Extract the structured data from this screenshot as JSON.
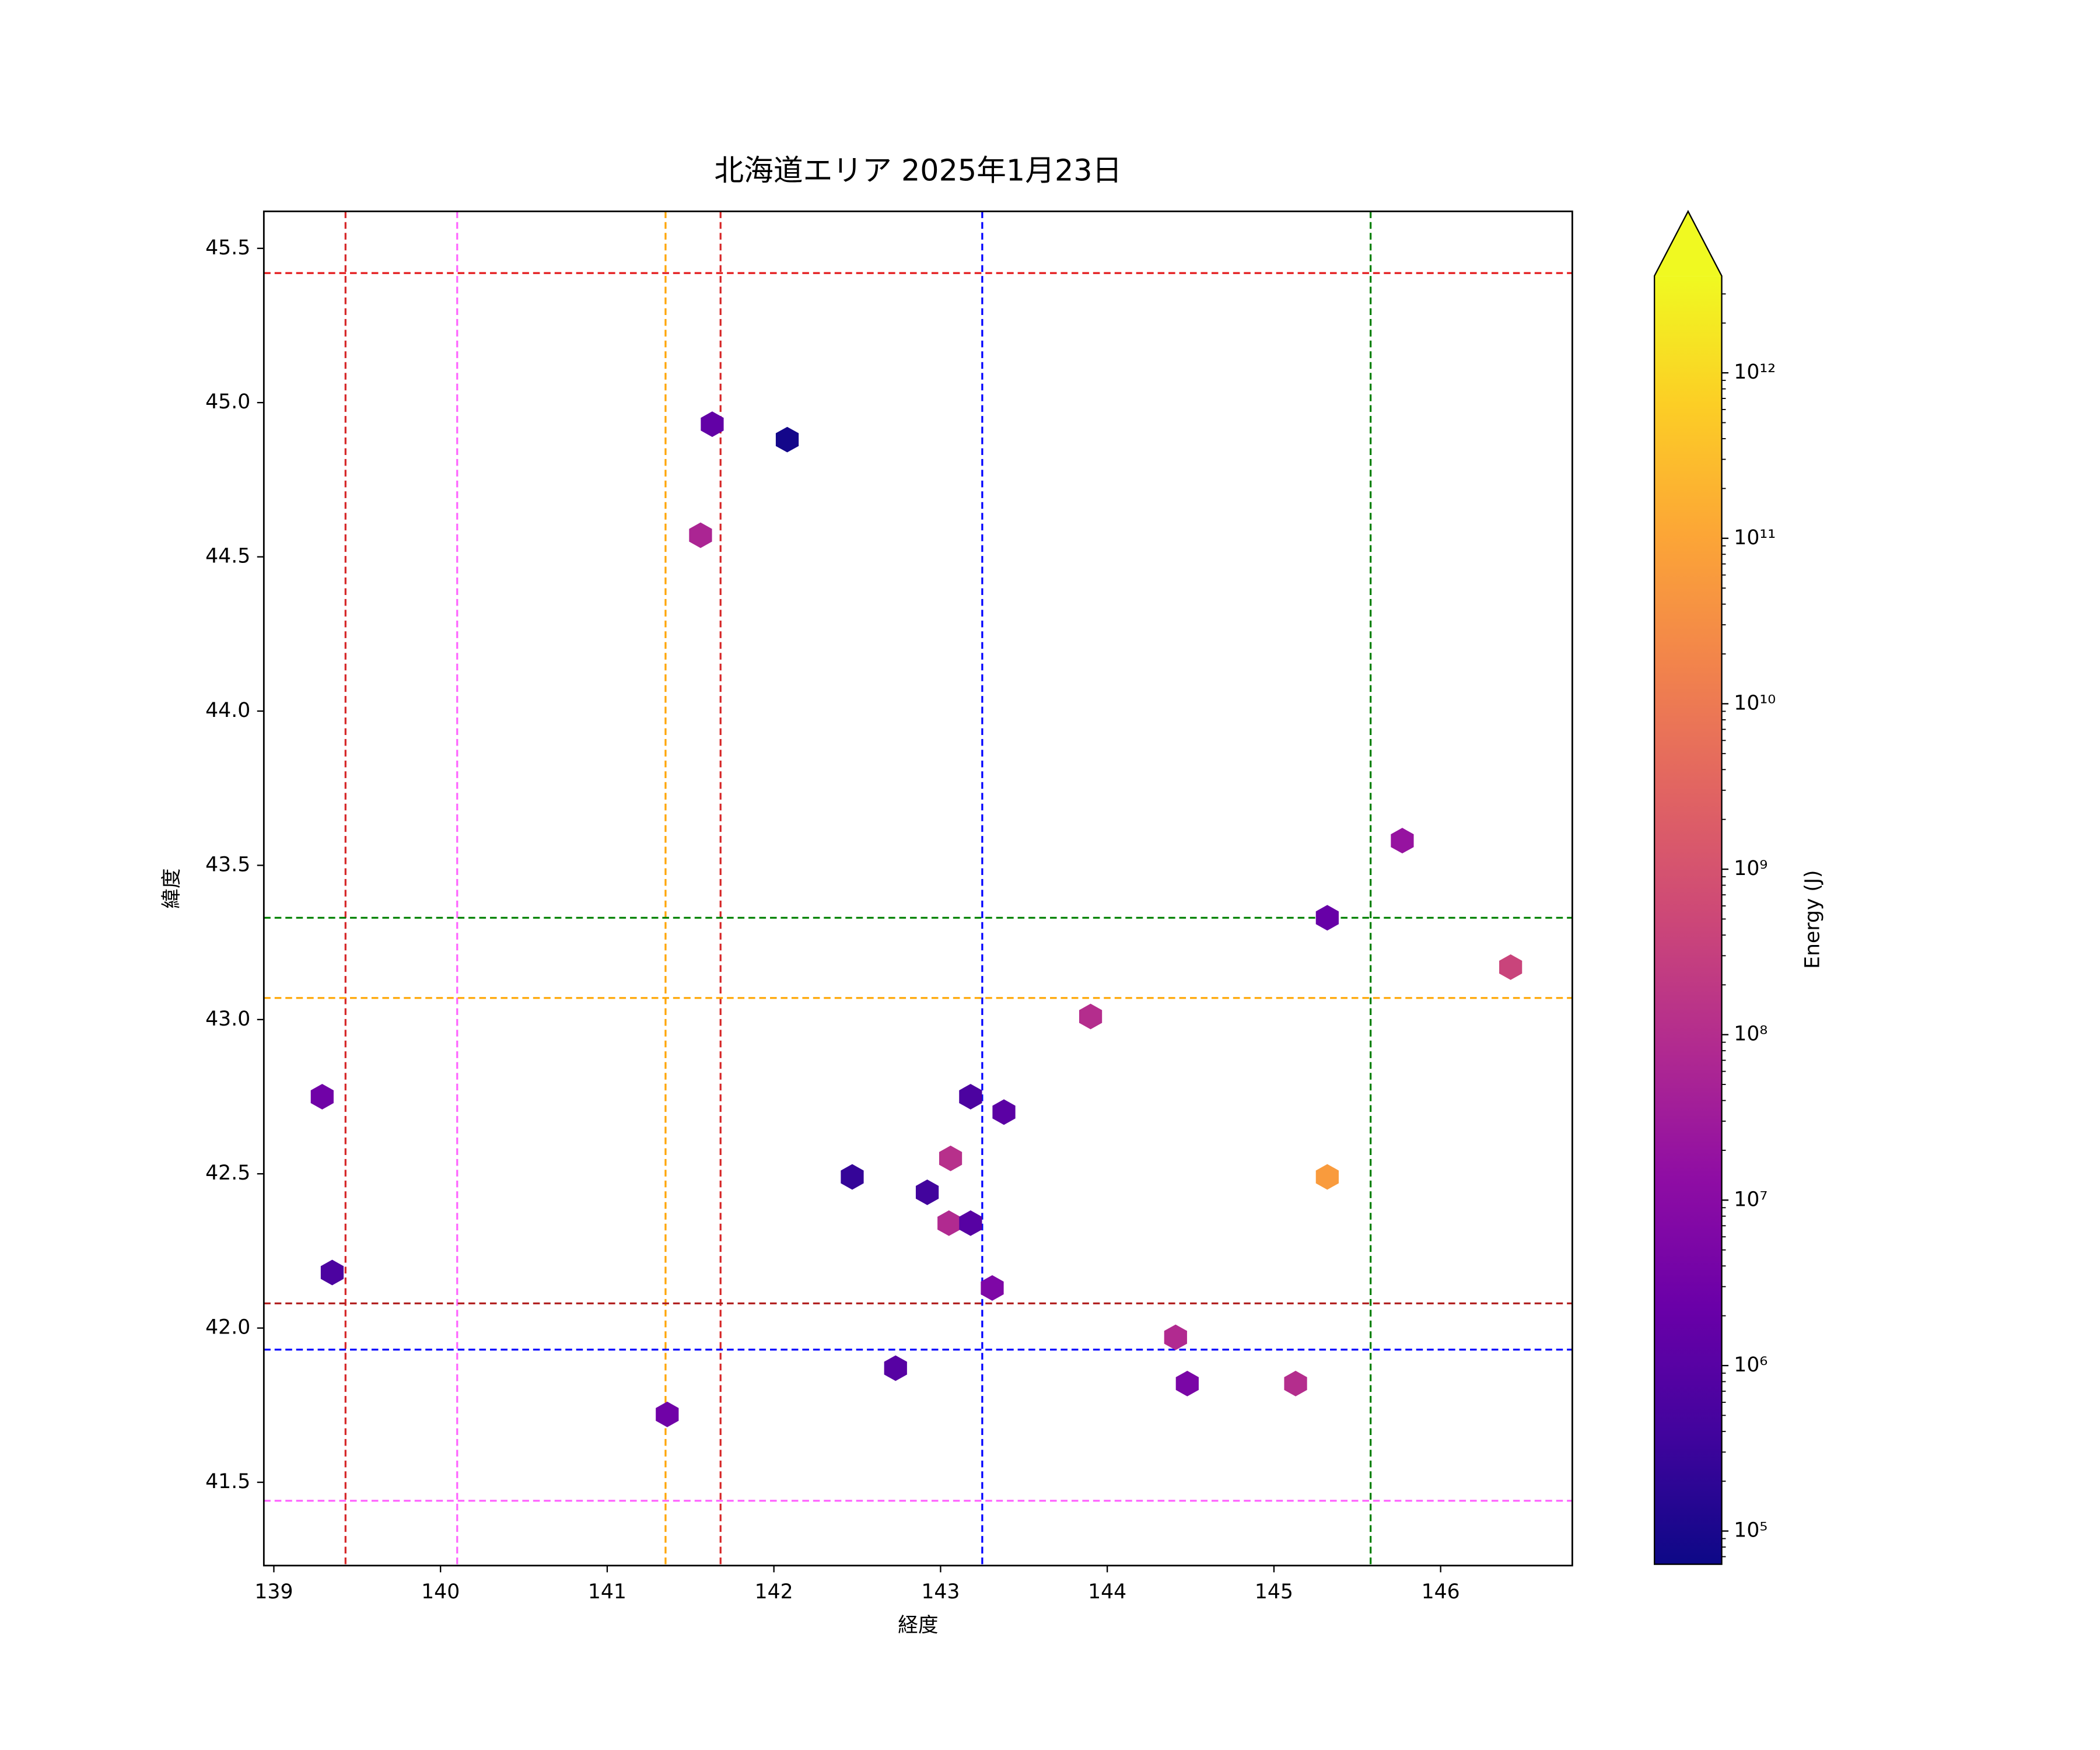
{
  "chart_data": {
    "type": "hexbin",
    "title": "北海道エリア 2025年1月23日",
    "x_label": "経度",
    "y_label": "緯度",
    "colorbar_label": "Energy (J)",
    "colormap": "plasma",
    "color_scale": "log",
    "clim": [
      63000,
      3850000000000.0
    ],
    "colorbar_extend": "max",
    "x": [
      141.63,
      142.08,
      141.56,
      145.77,
      145.32,
      146.42,
      143.9,
      139.29,
      143.18,
      143.38,
      143.06,
      142.47,
      145.32,
      142.92,
      143.05,
      143.18,
      139.35,
      143.31,
      144.41,
      142.73,
      144.48,
      145.13,
      141.36
    ],
    "y": [
      44.93,
      44.88,
      44.57,
      43.58,
      43.33,
      43.17,
      43.01,
      42.75,
      42.75,
      42.7,
      42.55,
      42.49,
      42.49,
      42.44,
      42.34,
      42.34,
      42.18,
      42.13,
      41.97,
      41.87,
      41.82,
      41.82,
      41.72
    ],
    "values": [
      1600000.0,
      80000.0,
      60000000.0,
      20000000.0,
      2000000.0,
      400000000.0,
      100000000.0,
      3000000.0,
      600000.0,
      1200000.0,
      120000000.0,
      250000.0,
      60000000000.0,
      400000.0,
      80000000.0,
      1000000.0,
      600000.0,
      6000000.0,
      80000000.0,
      1000000.0,
      5000000.0,
      100000000.0,
      3000000.0
    ],
    "xlim": [
      138.94,
      146.79
    ],
    "ylim": [
      41.23,
      45.62
    ],
    "xticks": [
      139,
      140,
      141,
      142,
      143,
      144,
      145,
      146
    ],
    "yticks": [
      {
        "value": 41.5,
        "label": "41.5"
      },
      {
        "value": 42,
        "label": "42.0"
      },
      {
        "value": 42.5,
        "label": "42.5"
      },
      {
        "value": 43,
        "label": "43.0"
      },
      {
        "value": 43.5,
        "label": "43.5"
      },
      {
        "value": 44,
        "label": "44.0"
      },
      {
        "value": 44.5,
        "label": "44.5"
      },
      {
        "value": 45,
        "label": "45.0"
      },
      {
        "value": 45.5,
        "label": "45.5"
      }
    ],
    "cticks": [
      {
        "value": 100000.0,
        "label": "10⁵"
      },
      {
        "value": 1000000.0,
        "label": "10⁶"
      },
      {
        "value": 10000000.0,
        "label": "10⁷"
      },
      {
        "value": 100000000.0,
        "label": "10⁸"
      },
      {
        "value": 1000000000.0,
        "label": "10⁹"
      },
      {
        "value": 10000000000.0,
        "label": "10¹⁰"
      },
      {
        "value": 100000000000.0,
        "label": "10¹¹"
      },
      {
        "value": 1000000000000.0,
        "label": "10¹²"
      }
    ],
    "vlines": [
      {
        "value": 139.43,
        "color": "#d62728"
      },
      {
        "value": 140.1,
        "color": "#ff66ff"
      },
      {
        "value": 141.35,
        "color": "#ffa500"
      },
      {
        "value": 141.68,
        "color": "#d62728"
      },
      {
        "value": 143.25,
        "color": "#0000ff"
      },
      {
        "value": 145.58,
        "color": "#008000"
      }
    ],
    "hlines": [
      {
        "value": 45.42,
        "color": "#e41a1c"
      },
      {
        "value": 43.33,
        "color": "#008000"
      },
      {
        "value": 43.07,
        "color": "#ffa500"
      },
      {
        "value": 42.08,
        "color": "#b22222"
      },
      {
        "value": 41.93,
        "color": "#0000ff"
      },
      {
        "value": 41.44,
        "color": "#ff66ff"
      }
    ]
  }
}
